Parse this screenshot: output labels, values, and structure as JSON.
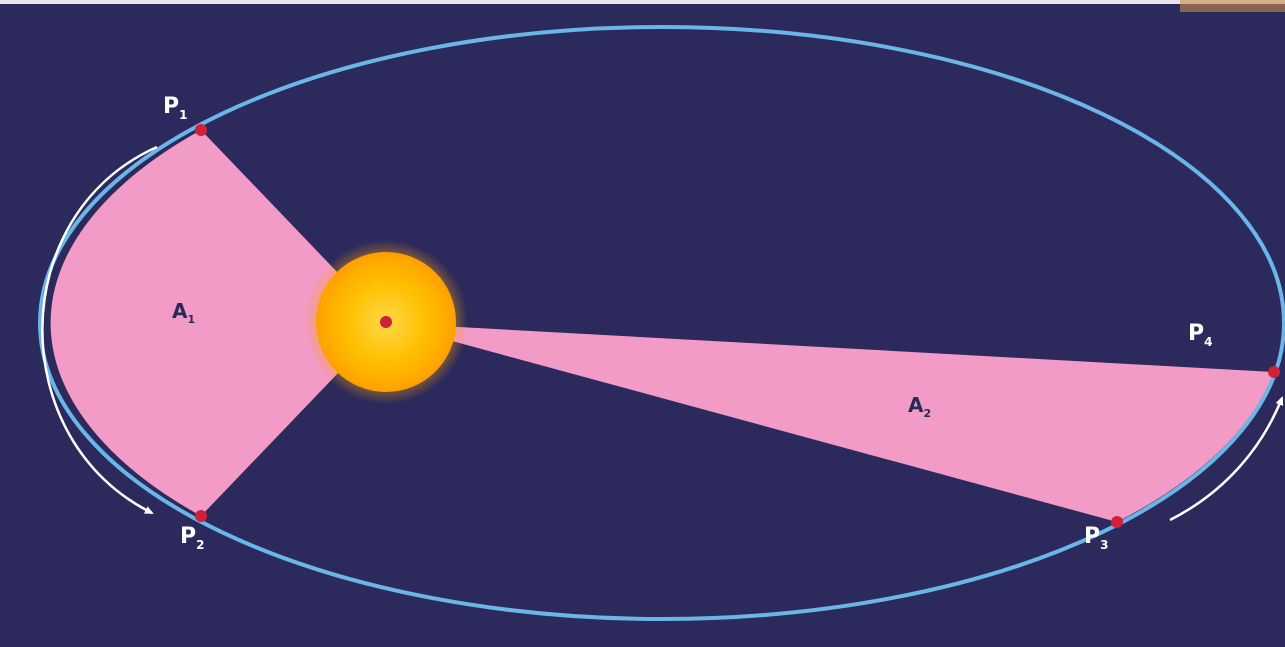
{
  "diagram": {
    "points": [
      {
        "id": "p1",
        "letter": "P",
        "sub": "1"
      },
      {
        "id": "p2",
        "letter": "P",
        "sub": "2"
      },
      {
        "id": "p3",
        "letter": "P",
        "sub": "3"
      },
      {
        "id": "p4",
        "letter": "P",
        "sub": "4"
      }
    ],
    "areas": [
      {
        "id": "a1",
        "letter": "A",
        "sub": "1"
      },
      {
        "id": "a2",
        "letter": "A",
        "sub": "2"
      }
    ],
    "colors": {
      "background": "#2c2a5c",
      "orbit": "#6bb6e8",
      "sector": "#f29bc6",
      "point": "#d0203a",
      "sun_core": "#ffc400",
      "sun_glow": "#ffb300",
      "arrow": "#ffffff"
    }
  }
}
